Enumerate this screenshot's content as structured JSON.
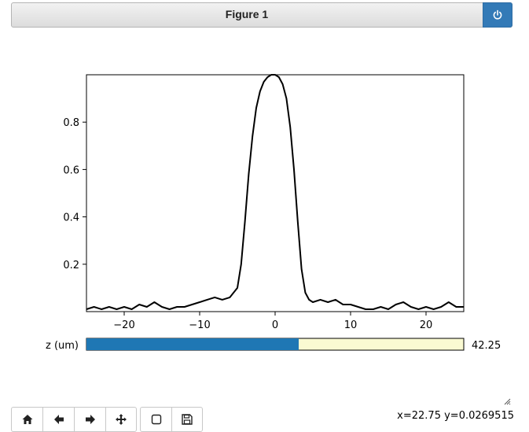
{
  "window": {
    "title": "Figure 1",
    "power_icon": "power-icon"
  },
  "chart_data": {
    "type": "line",
    "title": "",
    "xlabel": "",
    "ylabel": "",
    "xlim": [
      -25,
      25
    ],
    "ylim": [
      0,
      1.0
    ],
    "x_ticks": [
      -20,
      -10,
      0,
      10,
      20
    ],
    "x_tick_labels": [
      "−20",
      "−10",
      "0",
      "10",
      "20"
    ],
    "y_ticks": [
      0.2,
      0.4,
      0.6,
      0.8
    ],
    "y_tick_labels": [
      "0.2",
      "0.4",
      "0.6",
      "0.8"
    ],
    "grid": false,
    "line_color": "#000000",
    "series": [
      {
        "x": [
          -25,
          -24,
          -23,
          -22,
          -21,
          -20,
          -19,
          -18,
          -17,
          -16,
          -15,
          -14,
          -13,
          -12,
          -11,
          -10,
          -9,
          -8,
          -7,
          -6,
          -5,
          -4.5,
          -4,
          -3.5,
          -3,
          -2.5,
          -2,
          -1.5,
          -1,
          -0.5,
          0,
          0.5,
          1,
          1.5,
          2,
          2.5,
          3,
          3.5,
          4,
          4.5,
          5,
          6,
          7,
          8,
          9,
          10,
          11,
          12,
          13,
          14,
          15,
          16,
          17,
          18,
          19,
          20,
          21,
          22,
          23,
          24,
          25
        ],
        "y": [
          0.01,
          0.02,
          0.01,
          0.02,
          0.01,
          0.02,
          0.01,
          0.03,
          0.02,
          0.04,
          0.02,
          0.01,
          0.02,
          0.02,
          0.03,
          0.04,
          0.05,
          0.06,
          0.05,
          0.06,
          0.1,
          0.2,
          0.38,
          0.58,
          0.74,
          0.86,
          0.93,
          0.97,
          0.99,
          1.0,
          1.0,
          0.99,
          0.96,
          0.9,
          0.78,
          0.6,
          0.38,
          0.18,
          0.08,
          0.05,
          0.04,
          0.05,
          0.04,
          0.05,
          0.03,
          0.03,
          0.02,
          0.01,
          0.01,
          0.02,
          0.01,
          0.03,
          0.04,
          0.02,
          0.01,
          0.02,
          0.01,
          0.02,
          0.04,
          0.02,
          0.02
        ]
      }
    ]
  },
  "slider": {
    "label": "z (um)",
    "value_text": "42.25",
    "fraction": 0.5625,
    "fill_color": "#1f77b4",
    "track_color": "#fafad2"
  },
  "toolbar": {
    "buttons": [
      {
        "name": "home-button",
        "icon": "home-icon"
      },
      {
        "name": "back-button",
        "icon": "arrow-left-icon"
      },
      {
        "name": "forward-button",
        "icon": "arrow-right-icon"
      },
      {
        "name": "pan-button",
        "icon": "move-icon"
      },
      {
        "name": "zoom-button",
        "icon": "square-icon"
      },
      {
        "name": "save-button",
        "icon": "save-icon"
      }
    ]
  },
  "status": {
    "coords": "x=22.75 y=0.0269515"
  }
}
